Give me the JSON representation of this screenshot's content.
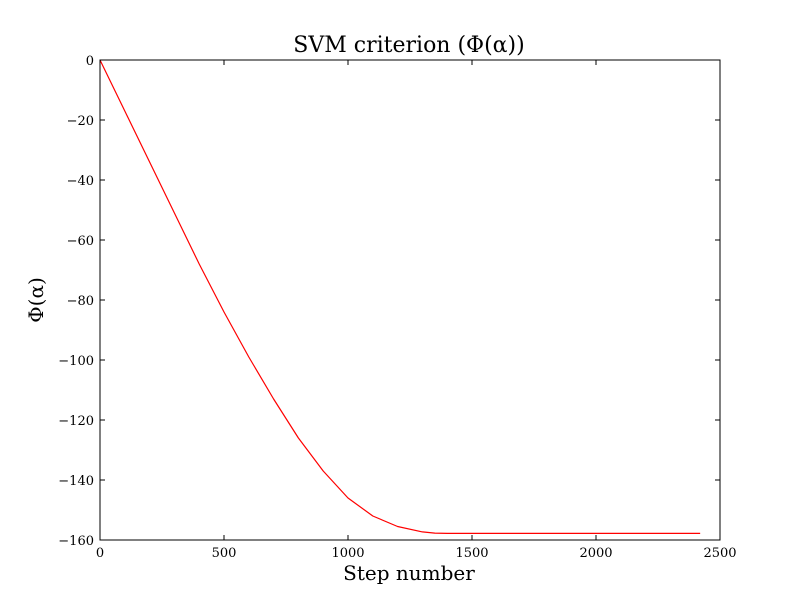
{
  "chart_data": {
    "type": "line",
    "title": "SVM criterion (Φ(α))",
    "xlabel": "Step number",
    "ylabel": "Φ(α)",
    "xlim": [
      0,
      2500
    ],
    "ylim": [
      -160,
      0
    ],
    "xticks": [
      0,
      500,
      1000,
      1500,
      2000,
      2500
    ],
    "yticks": [
      0,
      -20,
      -40,
      -60,
      -80,
      -100,
      -120,
      -140,
      -160
    ],
    "xtick_labels": [
      "0",
      "500",
      "1000",
      "1500",
      "2000",
      "2500"
    ],
    "ytick_labels": [
      "0",
      "−20",
      "−40",
      "−60",
      "−80",
      "−100",
      "−120",
      "−140",
      "−160"
    ],
    "grid": false,
    "series": [
      {
        "color": "#ff0000",
        "x": [
          0,
          100,
          200,
          300,
          400,
          500,
          600,
          700,
          800,
          900,
          1000,
          1100,
          1200,
          1300,
          1350,
          1400,
          1500,
          1600,
          1700,
          1800,
          1900,
          2000,
          2100,
          2200,
          2300,
          2420
        ],
        "y": [
          0,
          -17,
          -34,
          -51,
          -68,
          -84,
          -99,
          -113,
          -126,
          -137,
          -146,
          -152,
          -155.5,
          -157.3,
          -157.7,
          -157.8,
          -157.8,
          -157.8,
          -157.8,
          -157.8,
          -157.8,
          -157.8,
          -157.8,
          -157.8,
          -157.8,
          -157.8
        ]
      }
    ]
  }
}
